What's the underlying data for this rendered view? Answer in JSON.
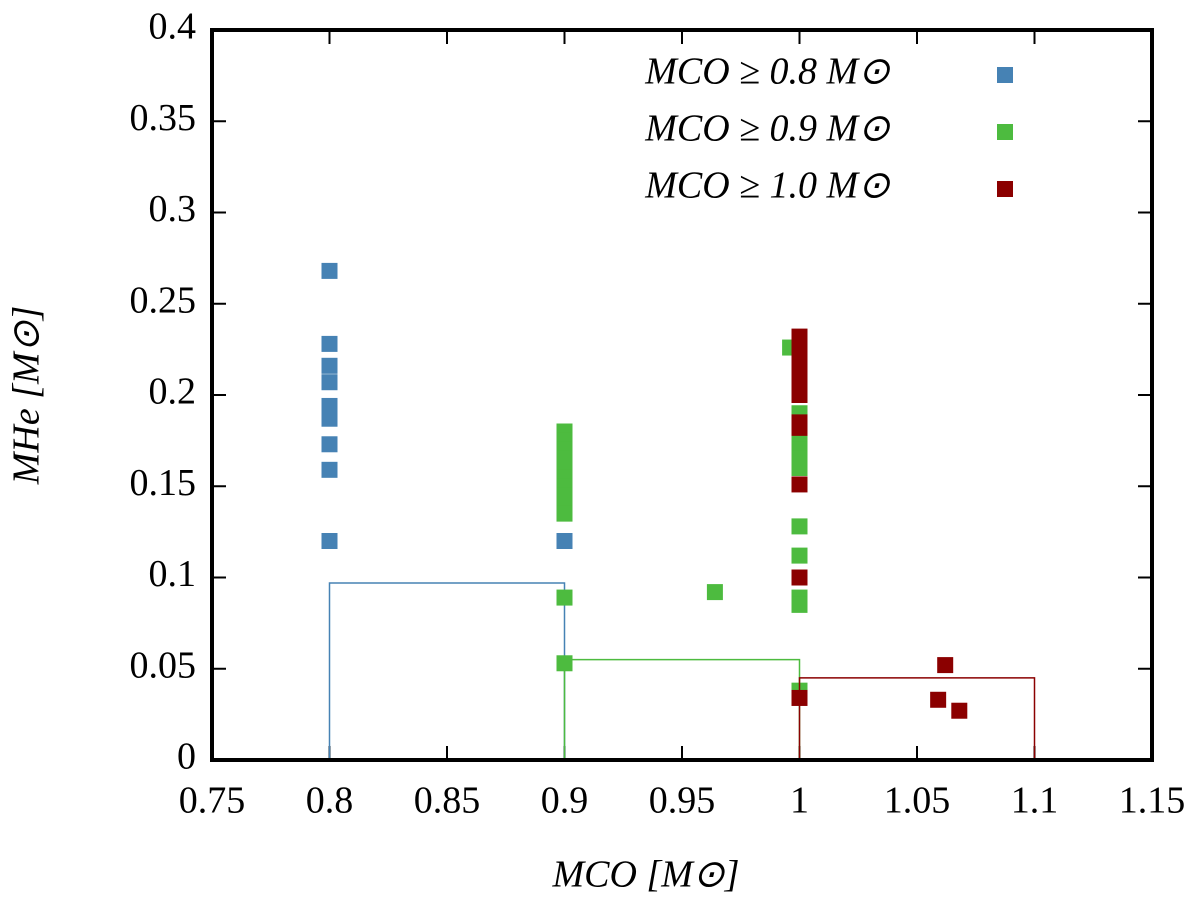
{
  "chart_data": {
    "type": "scatter",
    "x_label": "MCO [M⊙]",
    "y_label": "MHe [M⊙]",
    "xlim": [
      0.75,
      1.15
    ],
    "xticks": [
      0.75,
      0.8,
      0.85,
      0.9,
      0.95,
      1,
      1.05,
      1.1,
      1.15
    ],
    "ylim": [
      0,
      0.4
    ],
    "yticks": [
      0,
      0.05,
      0.1,
      0.15,
      0.2,
      0.25,
      0.3,
      0.35,
      0.4
    ],
    "legend": "top-right",
    "series": [
      {
        "name": "MCO ≥ 0.8 M⊙",
        "color": "#4682b4",
        "x": [
          0.8,
          0.8,
          0.8,
          0.8,
          0.8,
          0.8,
          0.8,
          0.8,
          0.8,
          0.8,
          0.9
        ],
        "values": [
          0.268,
          0.228,
          0.216,
          0.207,
          0.194,
          0.19,
          0.187,
          0.173,
          0.159,
          0.12,
          0.12
        ],
        "outline_x": [
          0.8,
          0.9
        ],
        "outline_y": 0.097
      },
      {
        "name": "MCO ≥ 0.9 M⊙",
        "color": "#4dbb3f",
        "x": [
          0.9,
          0.9,
          0.9,
          0.9,
          0.9,
          0.9,
          0.9,
          0.9,
          0.9,
          0.9,
          0.9,
          0.9,
          0.964,
          0.996,
          1,
          1,
          1,
          1,
          1,
          1,
          1,
          1,
          1,
          1
        ],
        "values": [
          0.18,
          0.175,
          0.17,
          0.165,
          0.16,
          0.155,
          0.15,
          0.145,
          0.14,
          0.135,
          0.089,
          0.053,
          0.092,
          0.226,
          0.19,
          0.175,
          0.17,
          0.165,
          0.16,
          0.128,
          0.112,
          0.089,
          0.085,
          0.038
        ],
        "outline_x": [
          0.9,
          1
        ],
        "outline_y": 0.055
      },
      {
        "name": "MCO ≥ 1.0 M⊙",
        "color": "#8b0000",
        "x": [
          1,
          1,
          1,
          1,
          1,
          1,
          1,
          1,
          1,
          1,
          1,
          1,
          1.059,
          1.062,
          1.068
        ],
        "values": [
          0.232,
          0.228,
          0.222,
          0.215,
          0.21,
          0.205,
          0.2,
          0.185,
          0.182,
          0.151,
          0.1,
          0.034,
          0.033,
          0.052,
          0.027
        ],
        "outline_x": [
          1,
          1.1
        ],
        "outline_y": 0.045
      }
    ]
  }
}
